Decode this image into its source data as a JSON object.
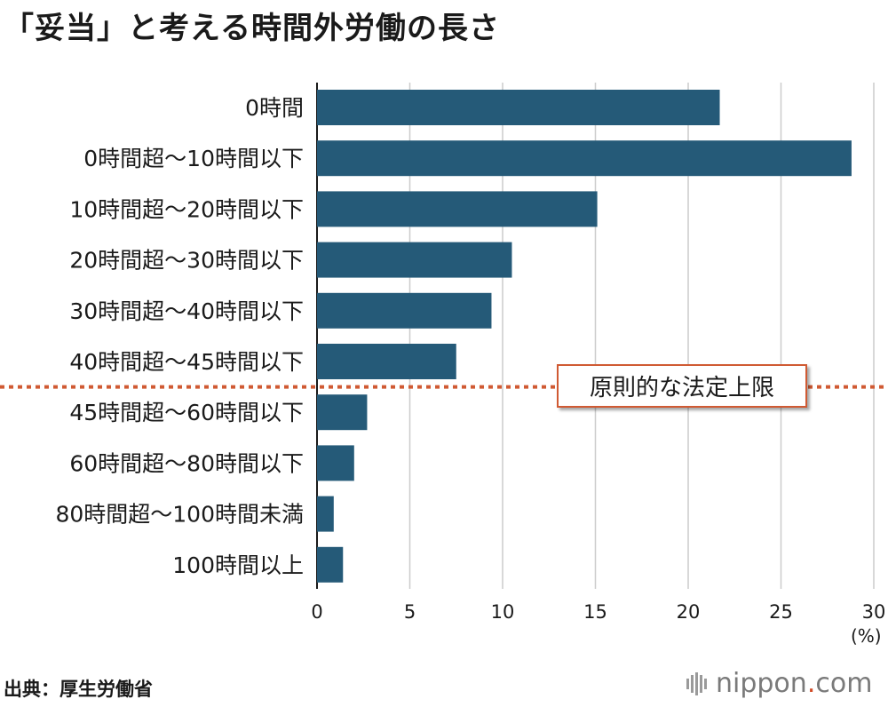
{
  "title": "「妥当」と考える時間外労働の長さ",
  "source": "出典：厚生労働省",
  "brand": {
    "name": "nippon",
    "dot": ".",
    "tld": "com",
    "icon": "nippon-logo-icon"
  },
  "colors": {
    "bar": "#255a78",
    "reference_line": "#d05a33",
    "grid": "#cccccc"
  },
  "chart_data": {
    "type": "bar",
    "orientation": "horizontal",
    "categories": [
      "0時間",
      "0時間超～10時間以下",
      "10時間超～20時間以下",
      "20時間超～30時間以下",
      "30時間超～40時間以下",
      "40時間超～45時間以下",
      "45時間超～60時間以下",
      "60時間超～80時間以下",
      "80時間超～100時間未満",
      "100時間以上"
    ],
    "values": [
      21.7,
      28.8,
      15.1,
      10.5,
      9.4,
      7.5,
      2.7,
      2.0,
      0.9,
      1.4
    ],
    "xlim": [
      0,
      30
    ],
    "xticks": [
      "0",
      "5",
      "10",
      "15",
      "20",
      "25",
      "30"
    ],
    "xunit": "(%)",
    "grid": true,
    "reference_line": {
      "label": "原則的な法定上限",
      "position": "between 40時間超～45時間以下 and 45時間超～60時間以下"
    }
  }
}
